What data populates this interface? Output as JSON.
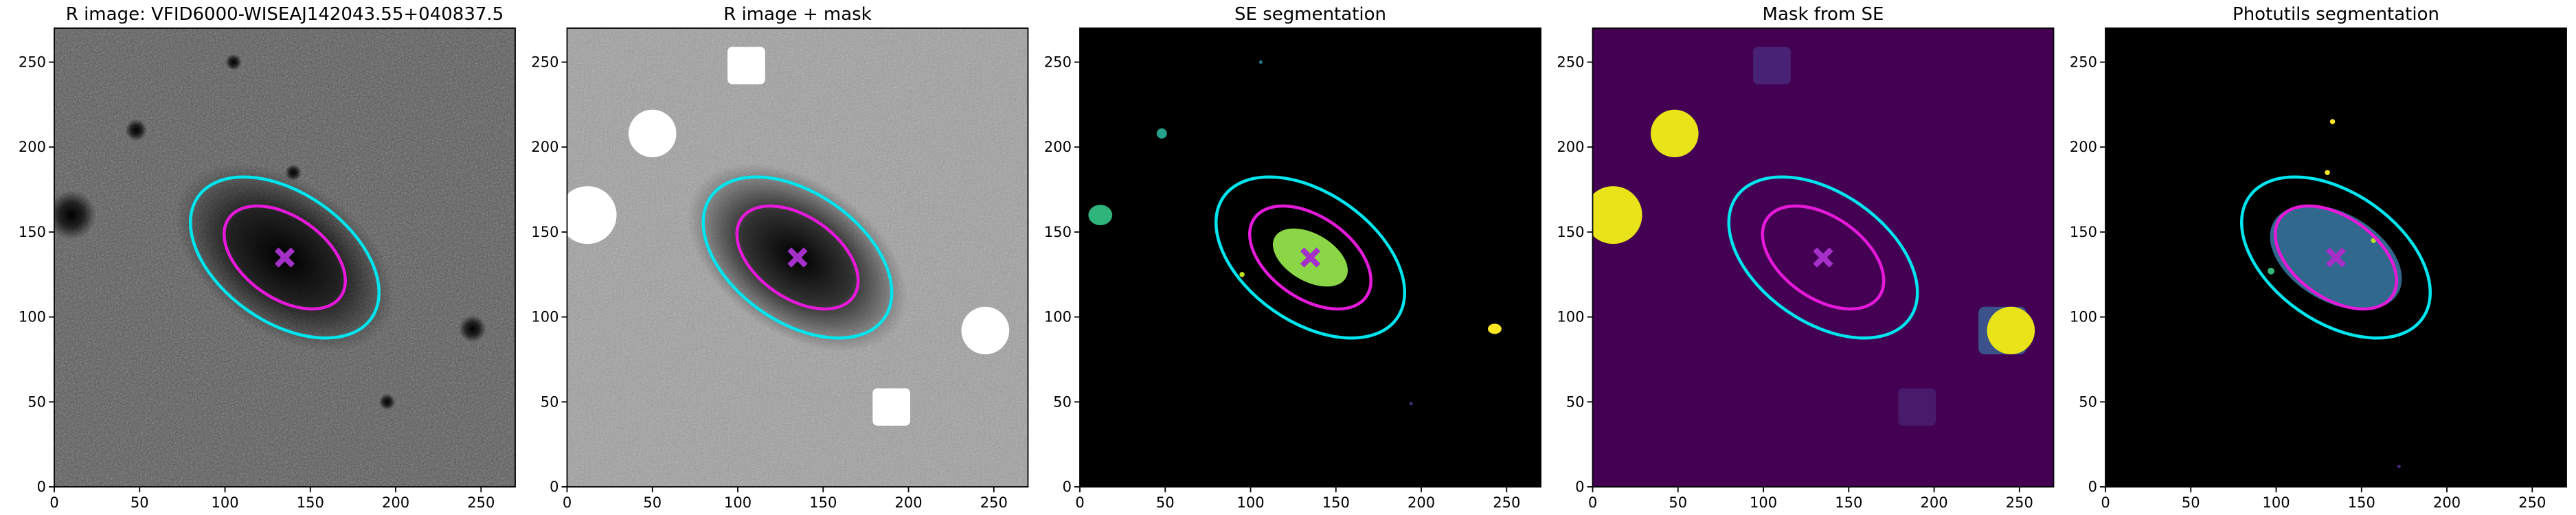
{
  "chart_data": [
    {
      "type": "image",
      "title": "R image: VFID6000-WISEAJ142043.55+040837.5",
      "xlim": [
        0,
        270
      ],
      "ylim": [
        0,
        270
      ],
      "xticks": [
        0,
        50,
        100,
        150,
        200,
        250
      ],
      "yticks": [
        0,
        50,
        100,
        150,
        200,
        250
      ],
      "background": "#5a5a5a",
      "noise": true,
      "sources": [
        {
          "kind": "glow",
          "x": 135,
          "y": 135,
          "rx": 45,
          "ry": 28,
          "angle": -35,
          "color": "#000000"
        },
        {
          "kind": "glow",
          "x": 10,
          "y": 160,
          "rx": 9,
          "ry": 9,
          "angle": 0,
          "color": "#000000"
        },
        {
          "kind": "glow",
          "x": 48,
          "y": 210,
          "rx": 4,
          "ry": 4,
          "angle": 0,
          "color": "#000000"
        },
        {
          "kind": "glow",
          "x": 245,
          "y": 93,
          "rx": 5,
          "ry": 5,
          "angle": 0,
          "color": "#000000"
        },
        {
          "kind": "glow",
          "x": 195,
          "y": 50,
          "rx": 3,
          "ry": 3,
          "angle": 0,
          "color": "#000000"
        },
        {
          "kind": "glow",
          "x": 105,
          "y": 250,
          "rx": 3,
          "ry": 3,
          "angle": 0,
          "color": "#000000"
        },
        {
          "kind": "glow",
          "x": 140,
          "y": 185,
          "rx": 3,
          "ry": 3,
          "angle": 0,
          "color": "#000000"
        }
      ],
      "ellipses": [
        {
          "x": 135,
          "y": 135,
          "rx": 62,
          "ry": 38,
          "angle": -35,
          "color": "#00e5ee"
        },
        {
          "x": 135,
          "y": 135,
          "rx": 40,
          "ry": 24,
          "angle": -35,
          "color": "#e41ad8"
        }
      ],
      "center": [
        135,
        135
      ],
      "center_color": "#a530c8"
    },
    {
      "type": "image",
      "title": "R image + mask",
      "xlim": [
        0,
        270
      ],
      "ylim": [
        0,
        270
      ],
      "xticks": [
        0,
        50,
        100,
        150,
        200,
        250
      ],
      "yticks": [
        0,
        50,
        100,
        150,
        200,
        250
      ],
      "background": "#a0a0a0",
      "noise": true,
      "sources": [
        {
          "kind": "glow",
          "x": 135,
          "y": 135,
          "rx": 45,
          "ry": 28,
          "angle": -35,
          "color": "#000000"
        },
        {
          "kind": "square",
          "x": 105,
          "y": 248,
          "rx": 11,
          "ry": 11,
          "angle": 0,
          "color": "#ffffff"
        },
        {
          "kind": "solid",
          "x": 50,
          "y": 208,
          "rx": 14,
          "ry": 14,
          "angle": 0,
          "color": "#ffffff"
        },
        {
          "kind": "solid",
          "x": 12,
          "y": 160,
          "rx": 17,
          "ry": 17,
          "angle": 0,
          "color": "#ffffff"
        },
        {
          "kind": "solid",
          "x": 245,
          "y": 92,
          "rx": 14,
          "ry": 14,
          "angle": 0,
          "color": "#ffffff"
        },
        {
          "kind": "square",
          "x": 190,
          "y": 47,
          "rx": 11,
          "ry": 11,
          "angle": 0,
          "color": "#ffffff"
        }
      ],
      "ellipses": [
        {
          "x": 135,
          "y": 135,
          "rx": 62,
          "ry": 38,
          "angle": -35,
          "color": "#00e5ee"
        },
        {
          "x": 135,
          "y": 135,
          "rx": 40,
          "ry": 24,
          "angle": -35,
          "color": "#e41ad8"
        }
      ],
      "center": [
        135,
        135
      ],
      "center_color": "#a530c8"
    },
    {
      "type": "image",
      "title": "SE segmentation",
      "xlim": [
        0,
        270
      ],
      "ylim": [
        0,
        270
      ],
      "xticks": [
        0,
        50,
        100,
        150,
        200,
        250
      ],
      "yticks": [
        0,
        50,
        100,
        150,
        200,
        250
      ],
      "background": "#000000",
      "noise": false,
      "sources": [
        {
          "kind": "solid",
          "x": 135,
          "y": 135,
          "rx": 24,
          "ry": 14,
          "angle": -30,
          "color": "#8bd646"
        },
        {
          "kind": "solid",
          "x": 12,
          "y": 160,
          "rx": 7,
          "ry": 6,
          "angle": 0,
          "color": "#2fb47c"
        },
        {
          "kind": "solid",
          "x": 48,
          "y": 208,
          "rx": 3,
          "ry": 3,
          "angle": 0,
          "color": "#25a18e"
        },
        {
          "kind": "solid",
          "x": 243,
          "y": 93,
          "rx": 4,
          "ry": 3,
          "angle": 0,
          "color": "#fde725"
        },
        {
          "kind": "solid",
          "x": 106,
          "y": 250,
          "rx": 1,
          "ry": 1,
          "angle": 0,
          "color": "#2a788e"
        },
        {
          "kind": "solid",
          "x": 95,
          "y": 125,
          "rx": 1.5,
          "ry": 1.5,
          "angle": 0,
          "color": "#c2df23"
        },
        {
          "kind": "solid",
          "x": 194,
          "y": 49,
          "rx": 1,
          "ry": 1,
          "angle": 0,
          "color": "#46327e"
        }
      ],
      "ellipses": [
        {
          "x": 135,
          "y": 135,
          "rx": 62,
          "ry": 38,
          "angle": -35,
          "color": "#00e5ee"
        },
        {
          "x": 135,
          "y": 135,
          "rx": 40,
          "ry": 24,
          "angle": -35,
          "color": "#e41ad8"
        }
      ],
      "center": [
        135,
        135
      ],
      "center_color": "#a530c8"
    },
    {
      "type": "image",
      "title": "Mask from SE",
      "xlim": [
        0,
        270
      ],
      "ylim": [
        0,
        270
      ],
      "xticks": [
        0,
        50,
        100,
        150,
        200,
        250
      ],
      "yticks": [
        0,
        50,
        100,
        150,
        200,
        250
      ],
      "background": "#440154",
      "noise": false,
      "sources": [
        {
          "kind": "square",
          "x": 105,
          "y": 248,
          "rx": 11,
          "ry": 11,
          "angle": 0,
          "color": "#482274"
        },
        {
          "kind": "square",
          "x": 190,
          "y": 47,
          "rx": 11,
          "ry": 11,
          "angle": 0,
          "color": "#481a6c"
        },
        {
          "kind": "square",
          "x": 240,
          "y": 92,
          "rx": 14,
          "ry": 14,
          "angle": 0,
          "color": "#3b528b"
        },
        {
          "kind": "solid",
          "x": 12,
          "y": 160,
          "rx": 17,
          "ry": 17,
          "angle": 0,
          "color": "#e8e419"
        },
        {
          "kind": "solid",
          "x": 48,
          "y": 208,
          "rx": 14,
          "ry": 14,
          "angle": 0,
          "color": "#e8e419"
        },
        {
          "kind": "solid",
          "x": 245,
          "y": 92,
          "rx": 14,
          "ry": 14,
          "angle": 0,
          "color": "#e8e419"
        }
      ],
      "ellipses": [
        {
          "x": 135,
          "y": 135,
          "rx": 62,
          "ry": 38,
          "angle": -35,
          "color": "#00e5ee"
        },
        {
          "x": 135,
          "y": 135,
          "rx": 40,
          "ry": 24,
          "angle": -35,
          "color": "#e41ad8"
        }
      ],
      "center": [
        135,
        135
      ],
      "center_color": "#a530c8"
    },
    {
      "type": "image",
      "title": "Photutils segmentation",
      "xlim": [
        0,
        270
      ],
      "ylim": [
        0,
        270
      ],
      "xticks": [
        0,
        50,
        100,
        150,
        200,
        250
      ],
      "yticks": [
        0,
        50,
        100,
        150,
        200,
        250
      ],
      "background": "#000000",
      "noise": false,
      "sources": [
        {
          "kind": "solid",
          "x": 135,
          "y": 135,
          "rx": 42,
          "ry": 26,
          "angle": -30,
          "color": "#31688e"
        },
        {
          "kind": "solid",
          "x": 133,
          "y": 215,
          "rx": 1.5,
          "ry": 1.5,
          "angle": 0,
          "color": "#fde725"
        },
        {
          "kind": "solid",
          "x": 130,
          "y": 185,
          "rx": 1.5,
          "ry": 1.5,
          "angle": 0,
          "color": "#fde725"
        },
        {
          "kind": "solid",
          "x": 97,
          "y": 127,
          "rx": 2,
          "ry": 2,
          "angle": 0,
          "color": "#35b779"
        },
        {
          "kind": "solid",
          "x": 157,
          "y": 145,
          "rx": 1.5,
          "ry": 1.5,
          "angle": 0,
          "color": "#b5de2b"
        },
        {
          "kind": "solid",
          "x": 172,
          "y": 12,
          "rx": 1,
          "ry": 1,
          "angle": 0,
          "color": "#482878"
        }
      ],
      "ellipses": [
        {
          "x": 135,
          "y": 135,
          "rx": 62,
          "ry": 38,
          "angle": -35,
          "color": "#00e5ee"
        },
        {
          "x": 135,
          "y": 135,
          "rx": 40,
          "ry": 24,
          "angle": -35,
          "color": "#e41ad8"
        }
      ],
      "center": [
        135,
        135
      ],
      "center_color": "#a530c8"
    }
  ]
}
